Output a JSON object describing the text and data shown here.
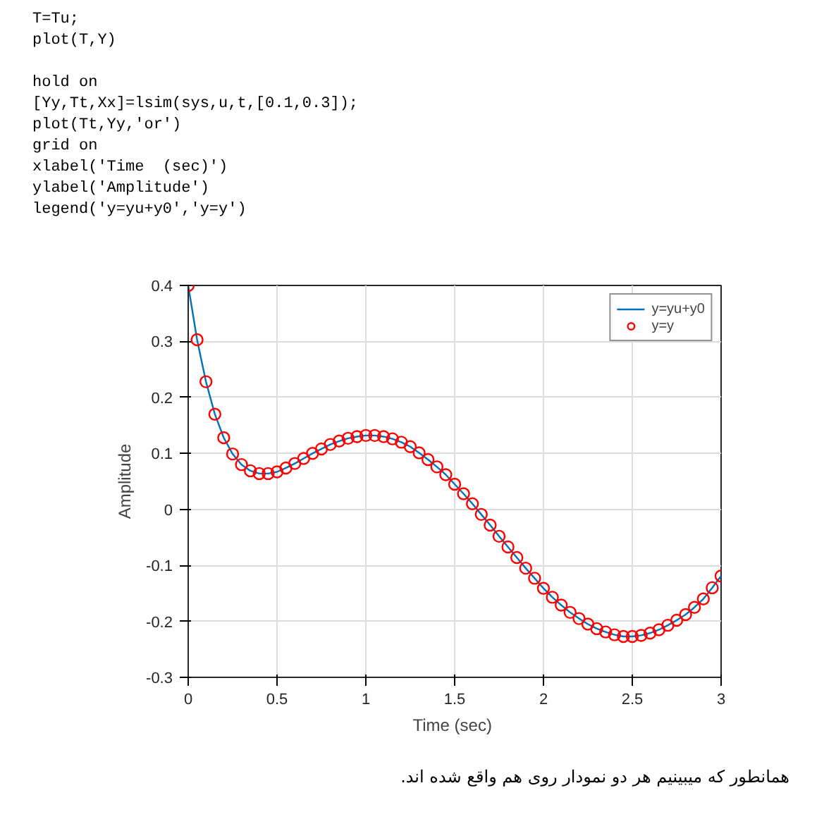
{
  "chart_data": {
    "type": "line",
    "xlabel": "Time  (sec)",
    "ylabel": "Amplitude",
    "annotations": [
      "T=Tu;\nplot(T,Y)\n\nhold on\n[Yy,Tt,Xx]=lsim(sys,u,t,[0.1,0.3]);\nplot(Tt,Yy,'or')\ngrid on\nxlabel('Time  (sec)')\nylabel('Amplitude')\nlegend('y=yu+y0','y=y')",
      "همانطور که میبینیم هر دو نمودار روی هم واقع شده اند."
    ],
    "x": [
      0,
      0.05,
      0.1,
      0.15,
      0.2,
      0.25,
      0.3,
      0.35,
      0.4,
      0.45,
      0.5,
      0.55,
      0.6,
      0.65,
      0.7,
      0.75,
      0.8,
      0.85,
      0.9,
      0.95,
      1.0,
      1.05,
      1.1,
      1.15,
      1.2,
      1.25,
      1.3,
      1.35,
      1.4,
      1.45,
      1.5,
      1.55,
      1.6,
      1.65,
      1.7,
      1.75,
      1.8,
      1.85,
      1.9,
      1.95,
      2.0,
      2.05,
      2.1,
      2.15,
      2.2,
      2.25,
      2.3,
      2.35,
      2.4,
      2.45,
      2.5,
      2.55,
      2.6,
      2.65,
      2.7,
      2.75,
      2.8,
      2.85,
      2.9,
      2.95,
      3.0
    ],
    "series": [
      {
        "name": "y=yu+y0",
        "color": "#0072bd",
        "line_style": "solid",
        "values": [
          0.4,
          0.303,
          0.228,
          0.17,
          0.128,
          0.099,
          0.08,
          0.069,
          0.064,
          0.064,
          0.067,
          0.074,
          0.082,
          0.091,
          0.1,
          0.108,
          0.116,
          0.122,
          0.127,
          0.13,
          0.132,
          0.132,
          0.13,
          0.126,
          0.12,
          0.112,
          0.101,
          0.089,
          0.076,
          0.062,
          0.045,
          0.028,
          0.01,
          -0.009,
          -0.028,
          -0.048,
          -0.067,
          -0.086,
          -0.105,
          -0.123,
          -0.141,
          -0.157,
          -0.171,
          -0.184,
          -0.195,
          -0.205,
          -0.213,
          -0.219,
          -0.224,
          -0.227,
          -0.227,
          -0.225,
          -0.221,
          -0.215,
          -0.207,
          -0.198,
          -0.188,
          -0.175,
          -0.16,
          -0.14,
          -0.119
        ]
      },
      {
        "name": "y=y",
        "type": "scatter",
        "color": "#ff0000",
        "marker": "circle",
        "values": [
          0.4,
          0.303,
          0.228,
          0.17,
          0.128,
          0.099,
          0.08,
          0.069,
          0.064,
          0.064,
          0.067,
          0.074,
          0.082,
          0.091,
          0.1,
          0.108,
          0.116,
          0.122,
          0.127,
          0.13,
          0.132,
          0.132,
          0.13,
          0.126,
          0.12,
          0.112,
          0.101,
          0.089,
          0.076,
          0.062,
          0.045,
          0.028,
          0.01,
          -0.009,
          -0.028,
          -0.048,
          -0.067,
          -0.086,
          -0.105,
          -0.123,
          -0.141,
          -0.157,
          -0.171,
          -0.184,
          -0.195,
          -0.205,
          -0.213,
          -0.219,
          -0.224,
          -0.227,
          -0.227,
          -0.225,
          -0.221,
          -0.215,
          -0.207,
          -0.198,
          -0.188,
          -0.175,
          -0.16,
          -0.14,
          -0.119
        ]
      }
    ],
    "xlim": [
      0,
      3
    ],
    "xticks": [
      0,
      0.5,
      1,
      1.5,
      2,
      2.5,
      3
    ],
    "ylim": [
      -0.3,
      0.4
    ],
    "yticks": [
      -0.3,
      -0.2,
      -0.1,
      0,
      0.1,
      0.2,
      0.3,
      0.4
    ],
    "grid": true,
    "legend": "top right"
  }
}
